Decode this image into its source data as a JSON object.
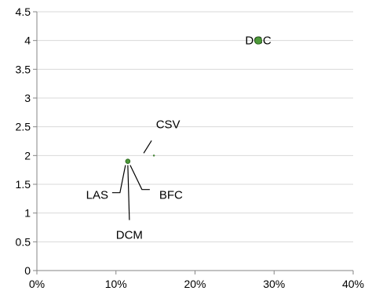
{
  "chart_data": {
    "type": "scatter",
    "title": "",
    "xlabel": "",
    "ylabel": "",
    "xlim": [
      0,
      0.4
    ],
    "ylim": [
      0,
      4.5
    ],
    "x_ticks": [
      "0%",
      "10%",
      "20%",
      "30%",
      "40%"
    ],
    "y_ticks": [
      "0",
      "0.5",
      "1",
      "1.5",
      "2",
      "2.5",
      "3",
      "3.5",
      "4",
      "4.5"
    ],
    "grid": "horizontal",
    "legend": "none",
    "points": [
      {
        "label": "DGC",
        "x": 0.28,
        "y": 4.0,
        "size": "large",
        "color": "#4e9a3a"
      },
      {
        "label": "CSV",
        "x": 0.148,
        "y": 2.0,
        "size": "tiny",
        "color": "#4e9a3a"
      },
      {
        "label": "LAS",
        "x": 0.115,
        "y": 1.9,
        "size": "small",
        "color": "#4e9a3a"
      },
      {
        "label": "BFC",
        "x": 0.115,
        "y": 1.9,
        "size": "small",
        "color": "#4e9a3a"
      },
      {
        "label": "DCM",
        "x": 0.115,
        "y": 1.9,
        "size": "small",
        "color": "#4e9a3a"
      }
    ]
  }
}
